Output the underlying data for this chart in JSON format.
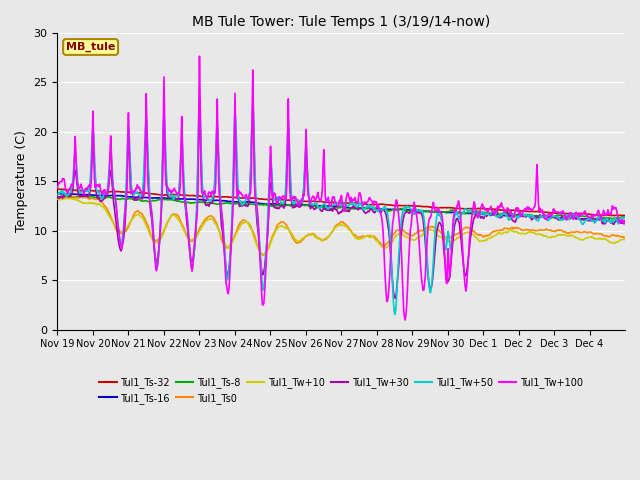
{
  "title": "MB Tule Tower: Tule Temps 1 (3/19/14-now)",
  "ylabel": "Temperature (C)",
  "ylim": [
    0,
    30
  ],
  "background_color": "#e8e8e8",
  "plot_bg_color": "#e8e8e8",
  "legend_box_color": "#ffff99",
  "legend_box_edge": "#aa8800",
  "MB_tule_label": "MB_tule",
  "grid_color": "#ffffff",
  "x_tick_labels": [
    "Nov 19",
    "Nov 20",
    "Nov 21",
    "Nov 22",
    "Nov 23",
    "Nov 24",
    "Nov 25",
    "Nov 26",
    "Nov 27",
    "Nov 28",
    "Nov 29",
    "Nov 30",
    "Dec 1",
    "Dec 2",
    "Dec 3",
    "Dec 4"
  ],
  "series": [
    {
      "name": "Tul1_Ts-32",
      "color": "#cc0000",
      "linewidth": 1.2
    },
    {
      "name": "Tul1_Ts-16",
      "color": "#0000cc",
      "linewidth": 1.2
    },
    {
      "name": "Tul1_Ts-8",
      "color": "#00aa00",
      "linewidth": 1.2
    },
    {
      "name": "Tul1_Ts0",
      "color": "#ff8800",
      "linewidth": 1.2
    },
    {
      "name": "Tul1_Tw+10",
      "color": "#cccc00",
      "linewidth": 1.2
    },
    {
      "name": "Tul1_Tw+30",
      "color": "#aa00aa",
      "linewidth": 1.2
    },
    {
      "name": "Tul1_Tw+50",
      "color": "#00cccc",
      "linewidth": 1.2
    },
    {
      "name": "Tul1_Tw+100",
      "color": "#ff00ff",
      "linewidth": 1.2
    }
  ],
  "legend_ncol": 6,
  "legend_ncol2": 2
}
